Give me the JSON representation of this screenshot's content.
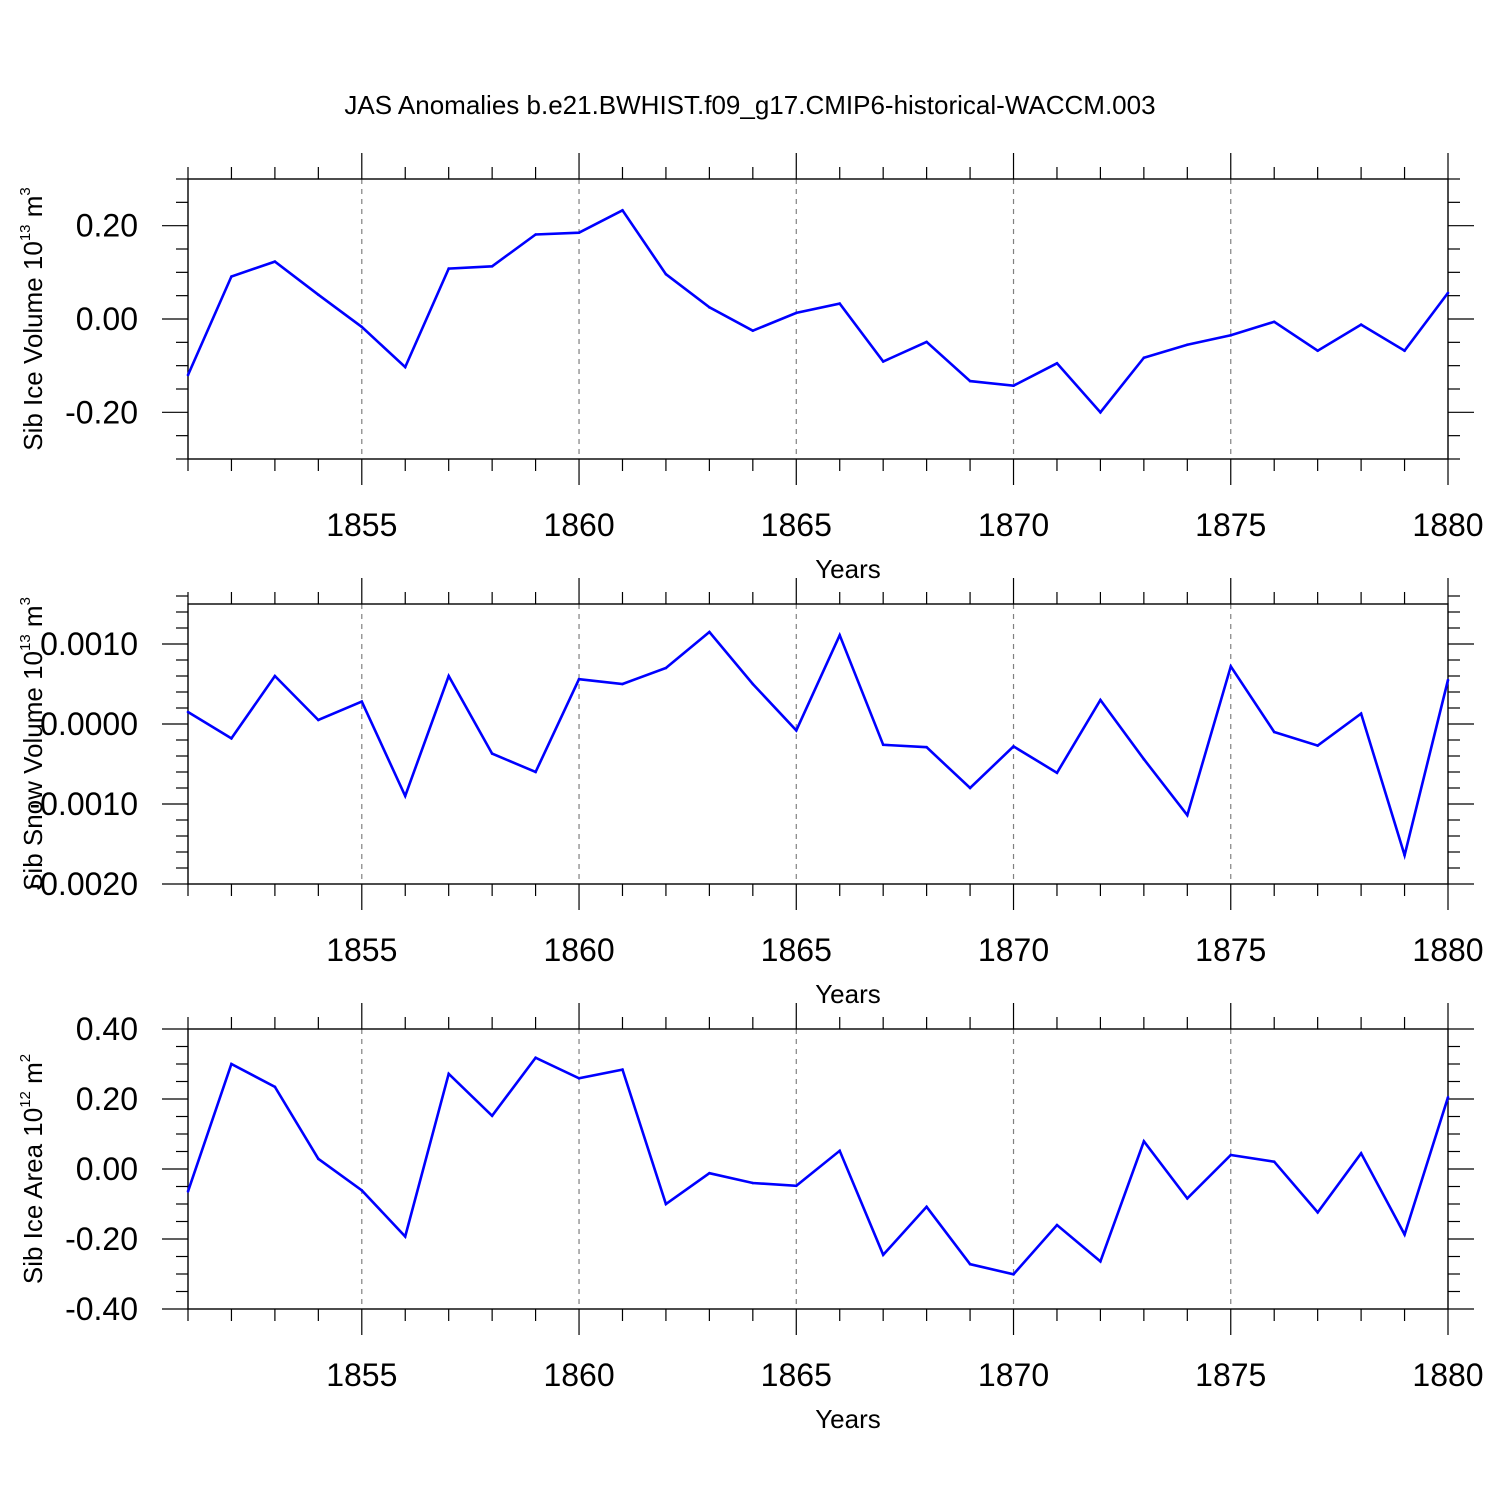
{
  "title": "JAS Anomalies b.e21.BWHIST.f09_g17.CMIP6-historical-WACCM.003",
  "colors": {
    "line": "#0000ff",
    "axis": "#000000",
    "grid": "#808080",
    "background": "#ffffff"
  },
  "chart_data": [
    {
      "type": "line",
      "ylabel": "Sib Ice Volume 10",
      "ylabel_exp": "13",
      "ylabel_unit": " m",
      "ylabel_unit_exp": "3",
      "xlabel": "Years",
      "xlim": [
        1851,
        1880
      ],
      "ylim": [
        -0.3,
        0.3
      ],
      "yticks": [
        -0.2,
        0.0,
        0.2
      ],
      "ytick_labels": [
        "-0.20",
        "0.00",
        "0.20"
      ],
      "yminor": 0.05,
      "xticks": [
        1855,
        1860,
        1865,
        1870,
        1875,
        1880
      ],
      "xtick_labels": [
        "1855",
        "1860",
        "1865",
        "1870",
        "1875",
        "1880"
      ],
      "grid": "vertical dashed at major x ticks",
      "series": [
        {
          "name": "Sib Ice Volume",
          "x": [
            1851,
            1852,
            1853,
            1854,
            1855,
            1856,
            1857,
            1858,
            1859,
            1860,
            1861,
            1862,
            1863,
            1864,
            1865,
            1866,
            1867,
            1868,
            1869,
            1870,
            1871,
            1872,
            1873,
            1874,
            1875,
            1876,
            1877,
            1878,
            1879,
            1880
          ],
          "values": [
            -0.12,
            0.091,
            0.123,
            0.052,
            -0.017,
            -0.103,
            0.108,
            0.113,
            0.181,
            0.185,
            0.233,
            0.096,
            0.025,
            -0.025,
            0.013,
            0.033,
            -0.091,
            -0.049,
            -0.133,
            -0.143,
            -0.095,
            -0.2,
            -0.083,
            -0.055,
            -0.035,
            -0.006,
            -0.068,
            -0.012,
            -0.068,
            0.056
          ]
        }
      ]
    },
    {
      "type": "line",
      "ylabel": "Sib Snow Volume 10",
      "ylabel_exp": "13",
      "ylabel_unit": " m",
      "ylabel_unit_exp": "3",
      "xlabel": "Years",
      "xlim": [
        1851,
        1880
      ],
      "ylim": [
        -0.002,
        0.0015
      ],
      "yticks": [
        -0.002,
        -0.001,
        0.0,
        0.001
      ],
      "ytick_labels": [
        "-0.0020",
        "-0.0010",
        "0.0000",
        "0.0010"
      ],
      "yminor": 0.0002,
      "xticks": [
        1855,
        1860,
        1865,
        1870,
        1875,
        1880
      ],
      "xtick_labels": [
        "1855",
        "1860",
        "1865",
        "1870",
        "1875",
        "1880"
      ],
      "grid": "vertical dashed at major x ticks",
      "series": [
        {
          "name": "Sib Snow Volume",
          "x": [
            1851,
            1852,
            1853,
            1854,
            1855,
            1856,
            1857,
            1858,
            1859,
            1860,
            1861,
            1862,
            1863,
            1864,
            1865,
            1866,
            1867,
            1868,
            1869,
            1870,
            1871,
            1872,
            1873,
            1874,
            1875,
            1876,
            1877,
            1878,
            1879,
            1880
          ],
          "values": [
            0.00015,
            -0.00018,
            0.0006,
            5e-05,
            0.00028,
            -0.0009,
            0.0006,
            -0.00037,
            -0.0006,
            0.00056,
            0.0005,
            0.0007,
            0.00115,
            0.0005,
            -8e-05,
            0.00111,
            -0.00026,
            -0.00029,
            -0.0008,
            -0.00028,
            -0.00061,
            0.0003,
            -0.00044,
            -0.00114,
            0.00072,
            -0.0001,
            -0.00027,
            0.00013,
            -0.00164,
            0.00055
          ]
        }
      ]
    },
    {
      "type": "line",
      "ylabel": "Sib Ice Area 10",
      "ylabel_exp": "12",
      "ylabel_unit": " m",
      "ylabel_unit_exp": "2",
      "xlabel": "Years",
      "xlim": [
        1851,
        1880
      ],
      "ylim": [
        -0.4,
        0.4
      ],
      "yticks": [
        -0.4,
        -0.2,
        0.0,
        0.2,
        0.4
      ],
      "ytick_labels": [
        "-0.40",
        "-0.20",
        "0.00",
        "0.20",
        "0.40"
      ],
      "yminor": 0.05,
      "xticks": [
        1855,
        1860,
        1865,
        1870,
        1875,
        1880
      ],
      "xtick_labels": [
        "1855",
        "1860",
        "1865",
        "1870",
        "1875",
        "1880"
      ],
      "grid": "vertical dashed at major x ticks",
      "series": [
        {
          "name": "Sib Ice Area",
          "x": [
            1851,
            1852,
            1853,
            1854,
            1855,
            1856,
            1857,
            1858,
            1859,
            1860,
            1861,
            1862,
            1863,
            1864,
            1865,
            1866,
            1867,
            1868,
            1869,
            1870,
            1871,
            1872,
            1873,
            1874,
            1875,
            1876,
            1877,
            1878,
            1879,
            1880
          ],
          "values": [
            -0.064,
            0.3,
            0.235,
            0.029,
            -0.061,
            -0.193,
            0.272,
            0.152,
            0.318,
            0.259,
            0.284,
            -0.1,
            -0.012,
            -0.04,
            -0.048,
            0.052,
            -0.245,
            -0.108,
            -0.272,
            -0.301,
            -0.16,
            -0.264,
            0.079,
            -0.084,
            0.04,
            0.021,
            -0.124,
            0.045,
            -0.187,
            0.205
          ]
        }
      ]
    }
  ]
}
